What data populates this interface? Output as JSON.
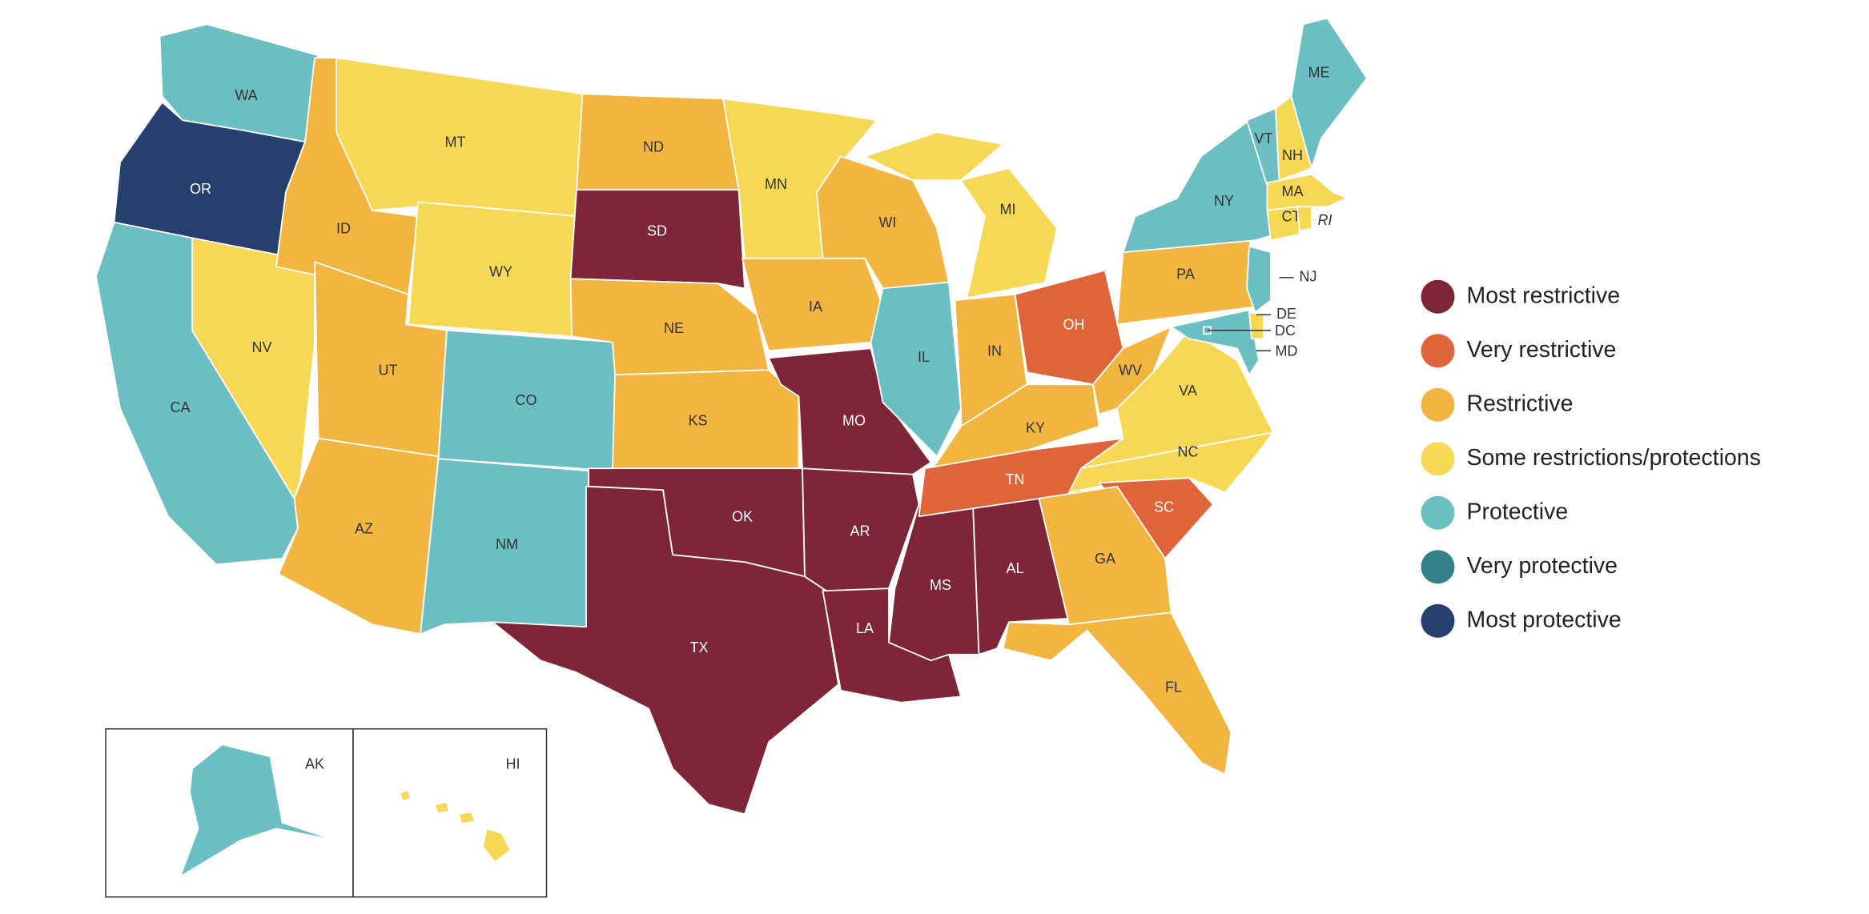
{
  "legend": {
    "items": [
      {
        "label": "Most restrictive",
        "color": "#7e2537",
        "states": [
          "SD",
          "MO",
          "OK",
          "TX",
          "AR",
          "LA",
          "MS",
          "AL"
        ]
      },
      {
        "label": "Very restrictive",
        "color": "#e0643a",
        "states": [
          "OH",
          "TN",
          "SC"
        ]
      },
      {
        "label": "Restrictive",
        "color": "#f2b540",
        "states": [
          "ID",
          "ND",
          "UT",
          "AZ",
          "NE",
          "KS",
          "IA",
          "WI",
          "IN",
          "KY",
          "WV",
          "PA",
          "GA",
          "FL"
        ]
      },
      {
        "label": "Some restrictions/protections",
        "color": "#f7d854",
        "states": [
          "MT",
          "WY",
          "NV",
          "MN",
          "MI",
          "VA",
          "NC",
          "NH",
          "MA",
          "CT",
          "RI",
          "DE",
          "HI"
        ]
      },
      {
        "label": "Protective",
        "color": "#6bbfc2",
        "states": [
          "WA",
          "CA",
          "CO",
          "NM",
          "IL",
          "NY",
          "NJ",
          "VT",
          "ME",
          "MD",
          "DC",
          "AK"
        ]
      },
      {
        "label": "Very protective",
        "color": "#34818a",
        "states": []
      },
      {
        "label": "Most protective",
        "color": "#253f6e",
        "states": [
          "OR"
        ]
      }
    ]
  }
}
